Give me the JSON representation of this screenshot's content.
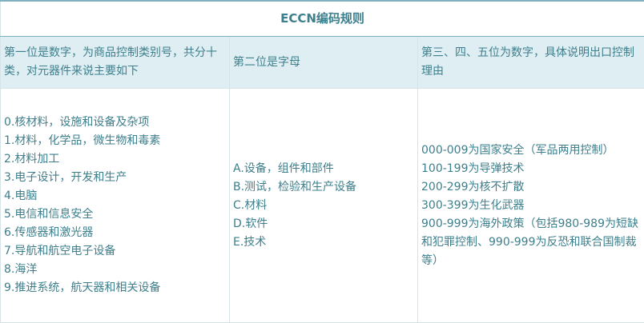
{
  "title": "ECCN编码规则",
  "headers": [
    "第一位是数字，为商品控制类别号，共分十类，对元器件来说主要如下",
    "第二位是字母",
    "第三、四、五位为数字，具体说明出口控制理由"
  ],
  "col1": [
    "0.核材料，设施和设备及杂项",
    "1.材料，化学品，微生物和毒素",
    "2.材料加工",
    "3.电子设计，开发和生产",
    "4.电脑",
    "5.电信和信息安全",
    "6.传感器和激光器",
    "7.导航和航空电子设备",
    "8.海洋",
    "9.推进系统，航天器和相关设备"
  ],
  "col2": [
    "A.设备，组件和部件",
    "B.测试，检验和生产设备",
    "C.材料",
    "D.软件",
    "E.技术"
  ],
  "col3": [
    "000-009为国家安全（军品两用控制）",
    "100-199为导弹技术",
    "200-299为核不扩散",
    "300-399为生化武器",
    "900-999为海外政策（包括980-989为短缺和犯罪控制、990-999为反恐和联合国制裁等）"
  ]
}
